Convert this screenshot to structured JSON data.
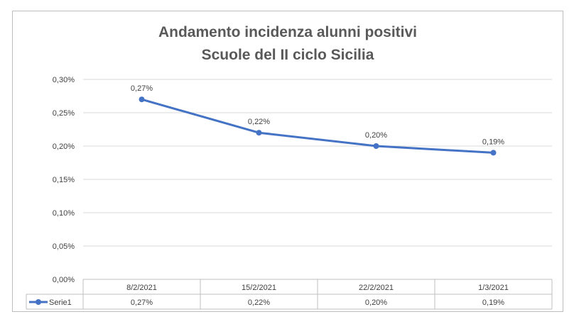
{
  "chart_data": {
    "type": "line",
    "title_line1": "Andamento incidenza alunni positivi",
    "title_line2": "Scuole del II ciclo Sicilia",
    "categories": [
      "8/2/2021",
      "15/2/2021",
      "22/2/2021",
      "1/3/2021"
    ],
    "series": [
      {
        "name": "Serie1",
        "values": [
          0.27,
          0.22,
          0.2,
          0.19
        ],
        "labels": [
          "0,27%",
          "0,22%",
          "0,20%",
          "0,19%"
        ],
        "color": "#4472c4"
      }
    ],
    "ylim": [
      0,
      0.3
    ],
    "y_ticks": [
      {
        "value": 0.0,
        "label": "0,00%"
      },
      {
        "value": 0.05,
        "label": "0,05%"
      },
      {
        "value": 0.1,
        "label": "0,10%"
      },
      {
        "value": 0.15,
        "label": "0,15%"
      },
      {
        "value": 0.2,
        "label": "0,20%"
      },
      {
        "value": 0.25,
        "label": "0,25%"
      },
      {
        "value": 0.3,
        "label": "0,30%"
      }
    ],
    "grid": true,
    "data_table": true,
    "gridline_color": "#d9d9d9",
    "axis_color": "#bfbfbf"
  }
}
